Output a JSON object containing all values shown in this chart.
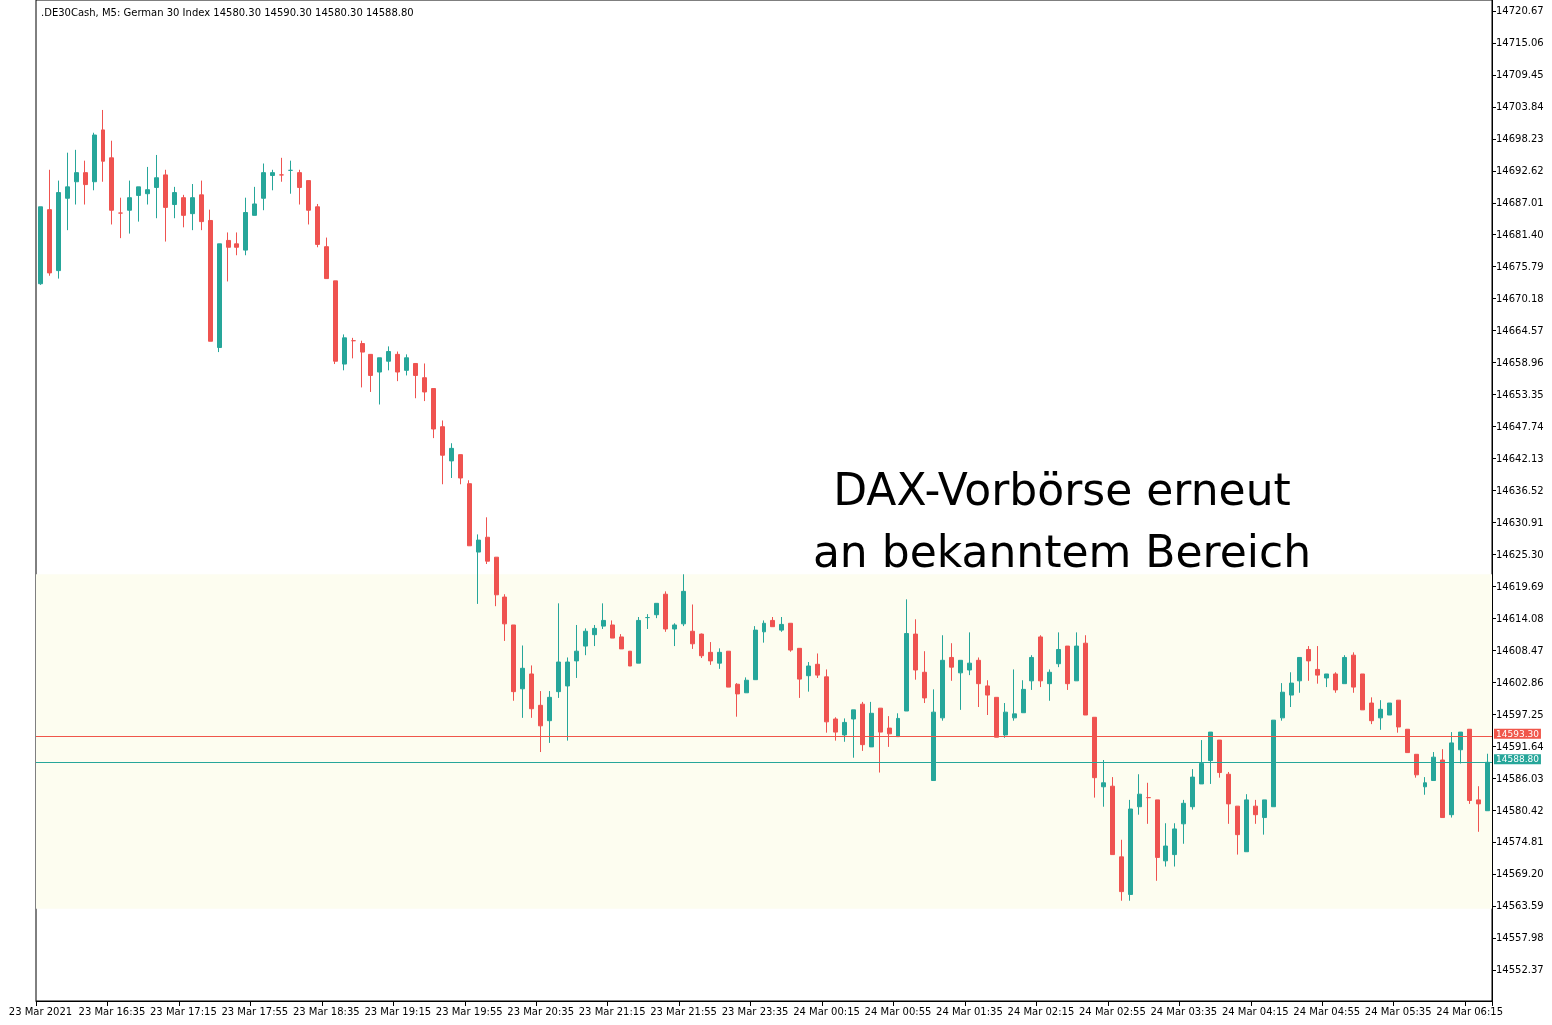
{
  "chart_data": {
    "type": "candlestick",
    "title": ".DE30Cash, M5: German 30 Index 14580.30 14590.30 14580.30 14588.80",
    "annotations": [
      "DAX-Vorbörse erneut\nan bekanntem Bereich"
    ],
    "categories": [
      "23 Mar 2021",
      null,
      null,
      null,
      null,
      null,
      null,
      null,
      "23 Mar 16:35",
      null,
      null,
      null,
      null,
      null,
      null,
      null,
      "23 Mar 17:15",
      null,
      null,
      null,
      null,
      null,
      null,
      null,
      "23 Mar 17:55",
      null,
      null,
      null,
      null,
      null,
      null,
      null,
      "23 Mar 18:35",
      null,
      null,
      null,
      null,
      null,
      null,
      null,
      "23 Mar 19:15",
      null,
      null,
      null,
      null,
      null,
      null,
      null,
      "23 Mar 19:55",
      null,
      null,
      null,
      null,
      null,
      null,
      null,
      "23 Mar 20:35",
      null,
      null,
      null,
      null,
      null,
      null,
      null,
      "23 Mar 21:15",
      null,
      null,
      null,
      null,
      null,
      null,
      null,
      "23 Mar 21:55",
      null,
      null,
      null,
      null,
      null,
      null,
      null,
      "23 Mar 23:35",
      null,
      null,
      null,
      null,
      null,
      null,
      null,
      "24 Mar 00:15",
      null,
      null,
      null,
      null,
      null,
      null,
      null,
      "24 Mar 00:55",
      null,
      null,
      null,
      null,
      null,
      null,
      null,
      "24 Mar 01:35",
      null,
      null,
      null,
      null,
      null,
      null,
      null,
      "24 Mar 02:15",
      null,
      null,
      null,
      null,
      null,
      null,
      null,
      "24 Mar 02:55",
      null,
      null,
      null,
      null,
      null,
      null,
      null,
      "24 Mar 03:35",
      null,
      null,
      null,
      null,
      null,
      null,
      null,
      "24 Mar 04:15",
      null,
      null,
      null,
      null,
      null,
      null,
      null,
      "24 Mar 04:55",
      null,
      null,
      null,
      null,
      null,
      null,
      null,
      "24 Mar 05:35",
      null,
      null,
      null,
      null,
      null,
      null,
      null,
      "24 Mar 06:15",
      null,
      null
    ],
    "ohlc": [
      [
        14672.8,
        14686.3,
        14672.6,
        14686.3
      ],
      [
        14685.8,
        14692.8,
        14674.2,
        14674.7
      ],
      [
        14675.1,
        14690.9,
        14673.7,
        14688.8
      ],
      [
        14687.8,
        14695.8,
        14682.2,
        14689.8
      ],
      [
        14690.7,
        14696.3,
        14686.7,
        14692.3
      ],
      [
        14692.3,
        14694.4,
        14686.7,
        14690.2
      ],
      [
        14690.7,
        14699.3,
        14689.2,
        14698.9
      ],
      [
        14699.8,
        14703.3,
        14690.7,
        14694.3
      ],
      [
        14694.9,
        14697.9,
        14683.2,
        14685.7
      ],
      [
        14685.2,
        14687.9,
        14680.8,
        14685.2
      ],
      [
        14685.7,
        14690.9,
        14681.6,
        14687.9
      ],
      [
        14688.3,
        14689.8,
        14683.7,
        14689.8
      ],
      [
        14688.6,
        14693.3,
        14686.7,
        14689.3
      ],
      [
        14689.7,
        14695.4,
        14684.3,
        14691.4
      ],
      [
        14691.9,
        14692.8,
        14680.2,
        14686.2
      ],
      [
        14686.7,
        14689.8,
        14684.3,
        14688.8
      ],
      [
        14687.9,
        14688.4,
        14682.7,
        14684.8
      ],
      [
        14685.1,
        14690.3,
        14682.2,
        14687.9
      ],
      [
        14688.4,
        14690.9,
        14682.2,
        14683.7
      ],
      [
        14683.9,
        14685.8,
        14662.7,
        14662.7
      ],
      [
        14661.6,
        14679.8,
        14660.8,
        14679.8
      ],
      [
        14680.4,
        14681.8,
        14673.2,
        14679.2
      ],
      [
        14679.8,
        14681.8,
        14677.8,
        14679.2
      ],
      [
        14678.7,
        14687.9,
        14677.8,
        14685.3
      ],
      [
        14684.8,
        14689.8,
        14684.8,
        14686.8
      ],
      [
        14687.8,
        14693.9,
        14685.7,
        14692.3
      ],
      [
        14691.8,
        14692.8,
        14689.2,
        14692.3
      ],
      [
        14691.9,
        14694.9,
        14690.7,
        14691.9
      ],
      [
        14692.7,
        14694.4,
        14688.6,
        14692.7
      ],
      [
        14692.3,
        14692.8,
        14686.7,
        14689.7
      ],
      [
        14690.9,
        14690.9,
        14683.2,
        14685.7
      ],
      [
        14686.3,
        14686.8,
        14679.2,
        14679.7
      ],
      [
        14679.3,
        14680.9,
        14673.7,
        14673.7
      ],
      [
        14673.3,
        14673.3,
        14658.7,
        14659.2
      ],
      [
        14658.7,
        14663.9,
        14657.6,
        14663.3
      ],
      [
        14662.8,
        14663.3,
        14659.7,
        14662.8
      ],
      [
        14662.3,
        14662.8,
        14654.6,
        14660.8
      ],
      [
        14660.4,
        14660.4,
        14653.8,
        14656.7
      ],
      [
        14657.3,
        14659.8,
        14651.6,
        14659.8
      ],
      [
        14659.2,
        14661.8,
        14657.6,
        14660.9
      ],
      [
        14660.4,
        14660.9,
        14655.7,
        14657.3
      ],
      [
        14657.6,
        14660.4,
        14656.7,
        14659.8
      ],
      [
        14658.8,
        14658.8,
        14652.7,
        14656.7
      ],
      [
        14656.3,
        14658.8,
        14652.2,
        14653.8
      ],
      [
        14654.4,
        14654.4,
        14645.7,
        14647.3
      ],
      [
        14647.7,
        14648.8,
        14637.6,
        14642.7
      ],
      [
        14641.7,
        14644.8,
        14638.7,
        14643.9
      ],
      [
        14642.8,
        14642.8,
        14637.6,
        14638.7
      ],
      [
        14637.7,
        14638.3,
        14626.8,
        14626.8
      ],
      [
        14625.7,
        14628.8,
        14616.6,
        14627.8
      ],
      [
        14628.3,
        14631.8,
        14623.6,
        14624.1
      ],
      [
        14624.8,
        14624.8,
        14616.2,
        14618.2
      ],
      [
        14617.8,
        14618.3,
        14610.1,
        14613.1
      ],
      [
        14612.9,
        14612.9,
        14599.6,
        14601.2
      ],
      [
        14601.7,
        14609.3,
        14596.6,
        14605.3
      ],
      [
        14604.3,
        14605.8,
        14596.6,
        14598.2
      ],
      [
        14598.8,
        14601.3,
        14590.6,
        14595.2
      ],
      [
        14596.1,
        14601.3,
        14592.2,
        14600.2
      ],
      [
        14601.2,
        14616.7,
        14600.1,
        14606.4
      ],
      [
        14602.2,
        14607.2,
        14592.6,
        14606.4
      ],
      [
        14606.6,
        14612.9,
        14603.6,
        14608.3
      ],
      [
        14609.2,
        14612.3,
        14607.6,
        14611.8
      ],
      [
        14611.2,
        14612.9,
        14609.2,
        14612.3
      ],
      [
        14612.7,
        14616.7,
        14612.2,
        14613.7
      ],
      [
        14612.9,
        14613.7,
        14610.6,
        14610.6
      ],
      [
        14610.8,
        14611.3,
        14608.7,
        14608.7
      ],
      [
        14608.3,
        14608.3,
        14605.7,
        14605.7
      ],
      [
        14606.2,
        14614.3,
        14606.2,
        14613.7
      ],
      [
        14614.2,
        14614.8,
        14612.2,
        14614.2
      ],
      [
        14614.7,
        14616.7,
        14614.1,
        14616.7
      ],
      [
        14618.3,
        14618.8,
        14611.7,
        14612.2
      ],
      [
        14612.2,
        14613.2,
        14609.2,
        14612.9
      ],
      [
        14613.1,
        14621.8,
        14612.7,
        14618.8
      ],
      [
        14611.8,
        14616.5,
        14608.7,
        14609.6
      ],
      [
        14611.3,
        14611.4,
        14607.1,
        14607.5
      ],
      [
        14608.1,
        14609.9,
        14605.9,
        14606.6
      ],
      [
        14606.2,
        14608.8,
        14605.2,
        14608.1
      ],
      [
        14608.3,
        14608.3,
        14602.0,
        14602.0
      ],
      [
        14602.5,
        14602.7,
        14596.8,
        14600.8
      ],
      [
        14601.0,
        14603.7,
        14601.0,
        14603.2
      ],
      [
        14603.3,
        14612.7,
        14603.3,
        14612.0
      ],
      [
        14611.7,
        14613.7,
        14609.8,
        14613.2
      ],
      [
        14613.7,
        14614.3,
        14612.6,
        14612.6
      ],
      [
        14612.0,
        14614.3,
        14611.7,
        14613.0
      ],
      [
        14613.2,
        14613.2,
        14608.2,
        14608.5
      ],
      [
        14608.8,
        14608.8,
        14600.1,
        14603.4
      ],
      [
        14604.0,
        14606.4,
        14601.2,
        14605.7
      ],
      [
        14606.0,
        14607.9,
        14603.6,
        14604.1
      ],
      [
        14603.8,
        14605.1,
        14594.0,
        14595.9
      ],
      [
        14596.4,
        14596.7,
        14592.6,
        14594.1
      ],
      [
        14593.6,
        14596.5,
        14592.4,
        14595.8
      ],
      [
        14596.4,
        14598.0,
        14589.6,
        14598.0
      ],
      [
        14599.0,
        14599.4,
        14590.8,
        14591.9
      ],
      [
        14591.5,
        14599.4,
        14591.5,
        14597.4
      ],
      [
        14598.3,
        14598.3,
        14587.0,
        14594.1
      ],
      [
        14594.8,
        14596.9,
        14591.5,
        14593.8
      ],
      [
        14593.3,
        14597.4,
        14593.3,
        14596.5
      ],
      [
        14597.8,
        14617.4,
        14597.8,
        14611.4
      ],
      [
        14611.3,
        14613.9,
        14603.3,
        14605.0
      ],
      [
        14604.6,
        14608.3,
        14599.2,
        14600.1
      ],
      [
        14585.6,
        14601.6,
        14585.6,
        14597.6
      ],
      [
        14596.6,
        14611.1,
        14596.1,
        14606.7
      ],
      [
        14607.2,
        14609.7,
        14603.1,
        14605.5
      ],
      [
        14604.5,
        14606.7,
        14598.0,
        14606.7
      ],
      [
        14605.0,
        14611.6,
        14604.1,
        14606.2
      ],
      [
        14606.7,
        14607.2,
        14598.5,
        14602.6
      ],
      [
        14602.2,
        14603.2,
        14597.1,
        14600.6
      ],
      [
        14600.2,
        14600.2,
        14593.2,
        14593.2
      ],
      [
        14593.6,
        14599.2,
        14593.1,
        14597.6
      ],
      [
        14596.6,
        14605.1,
        14596.1,
        14597.3
      ],
      [
        14597.5,
        14603.2,
        14597.5,
        14601.6
      ],
      [
        14603.1,
        14607.6,
        14601.5,
        14607.2
      ],
      [
        14610.8,
        14611.1,
        14602.0,
        14603.1
      ],
      [
        14602.6,
        14605.1,
        14599.6,
        14604.6
      ],
      [
        14606.1,
        14611.6,
        14605.5,
        14608.6
      ],
      [
        14609.2,
        14609.2,
        14601.5,
        14602.6
      ],
      [
        14603.1,
        14611.6,
        14603.1,
        14609.2
      ],
      [
        14609.7,
        14611.1,
        14597.1,
        14597.1
      ],
      [
        14596.7,
        14596.7,
        14582.6,
        14586.1
      ],
      [
        14584.5,
        14589.2,
        14581.0,
        14585.2
      ],
      [
        14584.6,
        14586.2,
        14572.6,
        14572.6
      ],
      [
        14572.2,
        14575.2,
        14564.5,
        14566.1
      ],
      [
        14565.6,
        14582.2,
        14564.5,
        14580.6
      ],
      [
        14581.0,
        14586.7,
        14579.6,
        14583.2
      ],
      [
        14582.6,
        14585.2,
        14578.0,
        14582.6
      ],
      [
        14582.2,
        14582.2,
        14568.0,
        14572.1
      ],
      [
        14571.5,
        14578.1,
        14570.5,
        14574.1
      ],
      [
        14572.6,
        14578.1,
        14570.5,
        14577.1
      ],
      [
        14578.0,
        14582.2,
        14574.5,
        14581.6
      ],
      [
        14581.0,
        14587.6,
        14580.5,
        14586.2
      ],
      [
        14585.0,
        14592.7,
        14585.0,
        14588.6
      ],
      [
        14589.1,
        14594.1,
        14585.0,
        14594.1
      ],
      [
        14592.7,
        14592.7,
        14586.1,
        14587.0
      ],
      [
        14586.7,
        14587.1,
        14578.0,
        14581.5
      ],
      [
        14581.1,
        14581.1,
        14572.6,
        14576.1
      ],
      [
        14573.1,
        14583.2,
        14573.1,
        14582.2
      ],
      [
        14581.1,
        14582.2,
        14578.0,
        14579.6
      ],
      [
        14579.1,
        14582.2,
        14576.1,
        14582.2
      ],
      [
        14581.0,
        14596.2,
        14581.0,
        14596.2
      ],
      [
        14596.6,
        14602.7,
        14596.1,
        14601.1
      ],
      [
        14600.6,
        14604.6,
        14598.5,
        14602.7
      ],
      [
        14603.1,
        14607.2,
        14601.0,
        14607.2
      ],
      [
        14608.6,
        14609.2,
        14603.1,
        14606.6
      ],
      [
        14605.1,
        14609.2,
        14602.6,
        14604.1
      ],
      [
        14603.6,
        14604.3,
        14602.0,
        14604.3
      ],
      [
        14604.3,
        14604.6,
        14601.0,
        14601.5
      ],
      [
        14602.6,
        14607.6,
        14602.6,
        14607.2
      ],
      [
        14607.6,
        14608.1,
        14601.0,
        14602.0
      ],
      [
        14604.3,
        14604.3,
        14598.0,
        14598.0
      ],
      [
        14599.2,
        14600.2,
        14595.5,
        14596.1
      ],
      [
        14596.6,
        14599.7,
        14594.5,
        14598.1
      ],
      [
        14597.1,
        14599.2,
        14597.1,
        14599.2
      ],
      [
        14599.7,
        14599.7,
        14594.0,
        14595.0
      ],
      [
        14594.6,
        14594.6,
        14590.5,
        14590.5
      ],
      [
        14590.2,
        14590.2,
        14586.1,
        14586.6
      ],
      [
        14584.5,
        14586.2,
        14583.1,
        14585.2
      ],
      [
        14585.6,
        14590.6,
        14585.6,
        14589.7
      ],
      [
        14589.2,
        14591.1,
        14579.1,
        14579.1
      ],
      [
        14579.6,
        14594.1,
        14579.1,
        14592.2
      ],
      [
        14591.0,
        14594.1,
        14588.6,
        14594.1
      ],
      [
        14594.6,
        14594.6,
        14581.5,
        14582.1
      ],
      [
        14582.2,
        14584.6,
        14576.6,
        14581.5
      ],
      [
        14580.3,
        14590.3,
        14580.3,
        14588.8
      ]
    ],
    "ylim": [
      14546.9,
      14722.6
    ],
    "yticks": [
      14720.67,
      14715.06,
      14709.45,
      14703.84,
      14698.23,
      14692.62,
      14687.01,
      {
        "value": 14681.4,
        "label": "14681.40"
      },
      14675.79,
      14670.18,
      14664.57,
      14658.96,
      14653.35,
      14647.74,
      14642.13,
      14636.52,
      14630.91,
      {
        "value": 14625.3,
        "label": "14625.30"
      },
      14619.69,
      14614.08,
      14608.47,
      14602.86,
      14597.25,
      14591.64,
      14586.03,
      14580.42,
      14574.81,
      {
        "value": 14569.2,
        "label": "14569.20"
      },
      14563.59,
      14557.98,
      14552.37
    ],
    "ref_lines": [
      {
        "axis": "y",
        "value": 14593.3,
        "label": "14593.30",
        "color": "#f0564a"
      },
      {
        "axis": "y",
        "value": 14588.8,
        "label": "14588.80",
        "color": "#26a69a"
      }
    ],
    "bands": [
      {
        "axis": "y",
        "from": 14563.1,
        "to": 14621.8,
        "color": "#fdfdf0"
      }
    ],
    "grid": false
  }
}
